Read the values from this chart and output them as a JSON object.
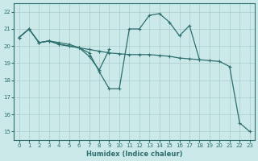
{
  "xlabel": "Humidex (Indice chaleur)",
  "bg_color": "#cce9e9",
  "grid_color": "#aacccc",
  "line_color": "#2d6e6e",
  "ylim": [
    14.5,
    22.5
  ],
  "yticks": [
    15,
    16,
    17,
    18,
    19,
    20,
    21,
    22
  ],
  "xlim": [
    -0.5,
    23.5
  ],
  "series_A_x": [
    0,
    1,
    2,
    3,
    4,
    5,
    6,
    7,
    8,
    9,
    10,
    11,
    12,
    13,
    14,
    15,
    16,
    17,
    18,
    19,
    20,
    21,
    22,
    23
  ],
  "series_A_y": [
    20.5,
    21.0,
    20.2,
    20.3,
    20.2,
    20.1,
    19.9,
    19.8,
    19.7,
    19.6,
    19.55,
    19.5,
    19.5,
    19.5,
    19.45,
    19.4,
    19.3,
    19.25,
    19.2,
    19.15,
    19.1,
    18.8,
    15.5,
    15.0
  ],
  "series_B_x": [
    0,
    1,
    2,
    3,
    4,
    5,
    6,
    7,
    8,
    9,
    10,
    11,
    12,
    13,
    14,
    15,
    16,
    17,
    18
  ],
  "series_B_y": [
    20.5,
    21.0,
    20.2,
    20.3,
    20.1,
    20.0,
    19.9,
    19.6,
    18.5,
    17.5,
    17.5,
    21.0,
    21.0,
    21.8,
    21.9,
    21.4,
    20.6,
    21.2,
    19.2
  ],
  "series_C_x": [
    0,
    1,
    2,
    3,
    4,
    5,
    6,
    7,
    8,
    9
  ],
  "series_C_y": [
    20.5,
    21.0,
    20.2,
    20.3,
    20.1,
    20.0,
    19.9,
    19.4,
    18.6,
    19.8
  ]
}
